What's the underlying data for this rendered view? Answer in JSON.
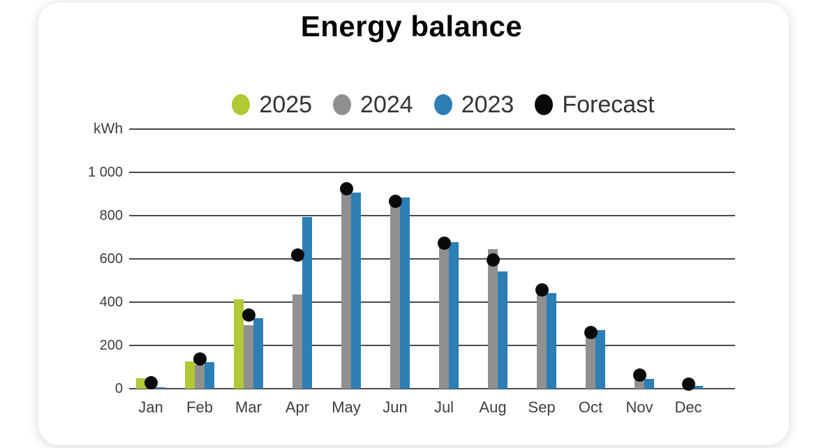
{
  "card": {
    "title": "Energy balance"
  },
  "legend": [
    {
      "label": "2025",
      "color": "#b1c935"
    },
    {
      "label": "2024",
      "color": "#909090"
    },
    {
      "label": "2023",
      "color": "#2c7fb5"
    },
    {
      "label": "Forecast",
      "color": "#0a0a0a"
    }
  ],
  "chart_data": {
    "type": "bar",
    "title": "Energy balance",
    "unit_label": "kWh",
    "categories": [
      "Jan",
      "Feb",
      "Mar",
      "Apr",
      "May",
      "Jun",
      "Jul",
      "Aug",
      "Sep",
      "Oct",
      "Nov",
      "Dec"
    ],
    "series": [
      {
        "name": "2025",
        "type": "bar",
        "color": "#b1c935",
        "values": [
          48,
          125,
          413,
          null,
          null,
          null,
          null,
          null,
          null,
          null,
          null,
          null
        ]
      },
      {
        "name": "2024",
        "type": "bar",
        "color": "#909090",
        "values": [
          15,
          110,
          293,
          437,
          911,
          866,
          670,
          645,
          455,
          262,
          55,
          12
        ]
      },
      {
        "name": "2023",
        "type": "bar",
        "color": "#2c7fb5",
        "values": [
          7,
          122,
          325,
          792,
          907,
          884,
          678,
          543,
          443,
          271,
          44,
          13
        ]
      },
      {
        "name": "Forecast",
        "type": "scatter",
        "color": "#0a0a0a",
        "values": [
          26,
          137,
          341,
          617,
          925,
          865,
          674,
          596,
          458,
          259,
          62,
          21
        ]
      }
    ],
    "yticks": [
      {
        "value": 0,
        "label": "0"
      },
      {
        "value": 200,
        "label": "200"
      },
      {
        "value": 400,
        "label": "400"
      },
      {
        "value": 600,
        "label": "600"
      },
      {
        "value": 800,
        "label": "800"
      },
      {
        "value": 1000,
        "label": "1 000"
      }
    ],
    "ylim": [
      0,
      1200
    ],
    "grid": true,
    "legend_position": "top"
  }
}
